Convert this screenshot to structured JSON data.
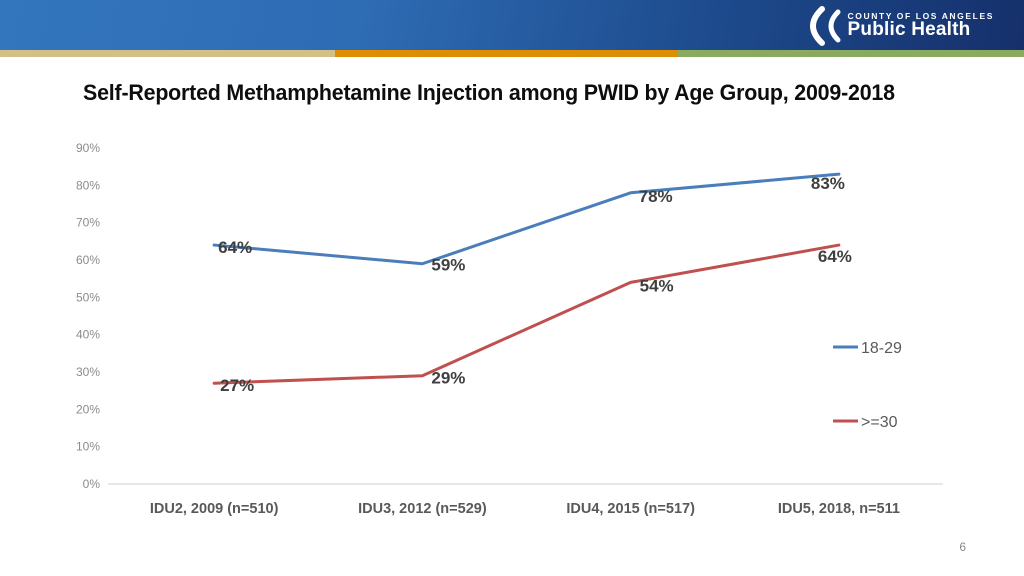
{
  "header": {
    "logo": {
      "line1": "COUNTY OF LOS ANGELES",
      "line2": "Public Health"
    },
    "colors": {
      "gradient_from": "#3376be",
      "gradient_to": "#16306b",
      "stripe_tan": "#d2c088",
      "stripe_orange": "#de8e04",
      "stripe_green": "#89aa5f"
    }
  },
  "slide": {
    "title": "Self-Reported Methamphetamine Injection among PWID by Age Group, 2009-2018",
    "page_number": "6"
  },
  "chart_data": {
    "type": "line",
    "title": "Self-Reported Methamphetamine Injection among PWID by Age Group, 2009-2018",
    "categories": [
      "IDU2, 2009 (n=510)",
      "IDU3, 2012 (n=529)",
      "IDU4, 2015 (n=517)",
      "IDU5, 2018, n=511"
    ],
    "series": [
      {
        "name": "18-29",
        "color": "#4a7eba",
        "values": [
          64,
          59,
          78,
          83
        ],
        "labels": [
          "64%",
          "59%",
          "78%",
          "83%"
        ]
      },
      {
        "name": ">=30",
        "color": "#c0504d",
        "values": [
          27,
          29,
          54,
          64
        ],
        "labels": [
          "27%",
          "29%",
          "54%",
          "64%"
        ]
      }
    ],
    "y_ticks": [
      "0%",
      "10%",
      "20%",
      "30%",
      "40%",
      "50%",
      "60%",
      "70%",
      "80%",
      "90%"
    ],
    "ylim": [
      0,
      90
    ],
    "xlabel": "",
    "ylabel": "",
    "grid": false,
    "legend_position": "right"
  }
}
